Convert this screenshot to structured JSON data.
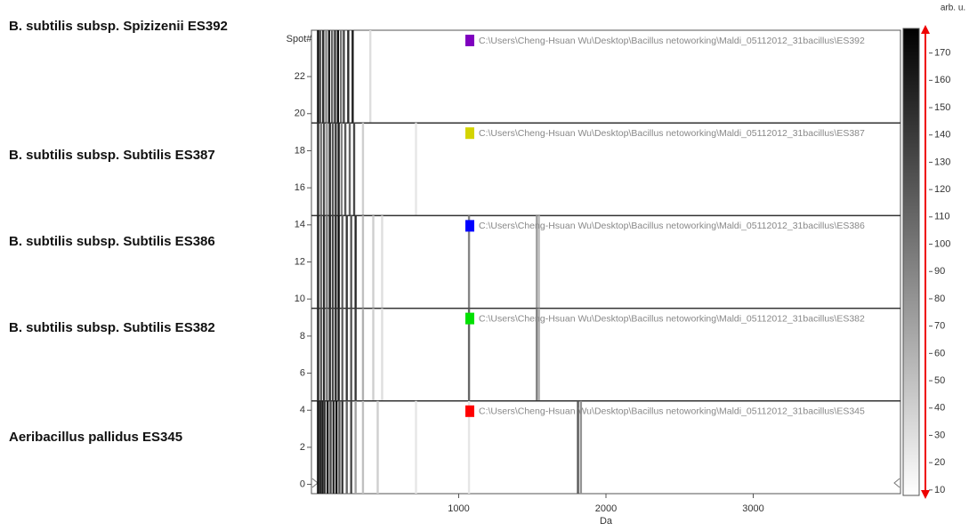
{
  "chart_data": {
    "type": "gel",
    "y_label": "Spot#",
    "x_label": "Da",
    "colorbar_label": "arb. u.",
    "xlim": [
      0,
      4000
    ],
    "xticks": [
      1000,
      2000,
      3000
    ],
    "ylim": [
      -0.5,
      24.5
    ],
    "yticks": [
      0,
      2,
      4,
      6,
      8,
      10,
      12,
      14,
      16,
      18,
      20,
      22
    ],
    "clim": [
      8,
      179
    ],
    "cticks": [
      10,
      20,
      30,
      40,
      50,
      60,
      70,
      80,
      90,
      100,
      110,
      120,
      130,
      140,
      150,
      160,
      170
    ],
    "samples": [
      {
        "name": "B. subtilis subsp. Spizizenii ES392",
        "path": "C:\\Users\\Cheng-Hsuan Wu\\Desktop\\Bacillus netoworking\\Maldi_05112012_31bacillus\\ES392",
        "color": "#7f00bf",
        "spots": [
          20,
          24
        ],
        "peaks": [
          45,
          60,
          80,
          100,
          120,
          140,
          160,
          180,
          200,
          220,
          250,
          280,
          400
        ],
        "intensities": [
          170,
          120,
          150,
          90,
          160,
          110,
          140,
          170,
          100,
          130,
          150,
          160,
          30
        ]
      },
      {
        "name": "B. subtilis subsp. Subtilis ES387",
        "path": "C:\\Users\\Cheng-Hsuan Wu\\Desktop\\Bacillus netoworking\\Maldi_05112012_31bacillus\\ES387",
        "color": "#d4d400",
        "spots": [
          15,
          19
        ],
        "peaks": [
          45,
          65,
          85,
          105,
          125,
          145,
          165,
          185,
          205,
          230,
          260,
          290,
          350,
          710
        ],
        "intensities": [
          150,
          100,
          130,
          80,
          150,
          120,
          140,
          160,
          90,
          120,
          110,
          130,
          40,
          25
        ]
      },
      {
        "name": "B. subtilis subsp. Subtilis ES386",
        "path": "C:\\Users\\Cheng-Hsuan Wu\\Desktop\\Bacillus netoworking\\Maldi_05112012_31bacillus\\ES386",
        "color": "#0000ff",
        "spots": [
          10,
          14
        ],
        "peaks": [
          45,
          65,
          85,
          105,
          125,
          145,
          165,
          185,
          210,
          240,
          270,
          300,
          350,
          420,
          480,
          1070,
          1530,
          1545
        ],
        "intensities": [
          160,
          110,
          150,
          100,
          160,
          130,
          150,
          170,
          110,
          140,
          120,
          150,
          50,
          40,
          30,
          90,
          70,
          50
        ]
      },
      {
        "name": "B. subtilis subsp. Subtilis  ES382",
        "path": "C:\\Users\\Cheng-Hsuan Wu\\Desktop\\Bacillus netoworking\\Maldi_05112012_31bacillus\\ES382",
        "color": "#00e000",
        "spots": [
          5,
          9
        ],
        "peaks": [
          45,
          65,
          85,
          105,
          125,
          145,
          165,
          185,
          210,
          240,
          270,
          300,
          350,
          420,
          480,
          1070,
          1530,
          1545
        ],
        "intensities": [
          160,
          120,
          150,
          100,
          150,
          130,
          150,
          160,
          110,
          140,
          120,
          140,
          60,
          40,
          30,
          110,
          90,
          60
        ]
      },
      {
        "name": "Aeribacillus pallidus ES345",
        "path": "C:\\Users\\Cheng-Hsuan Wu\\Desktop\\Bacillus netoworking\\Maldi_05112012_31bacillus\\ES345",
        "color": "#ff0000",
        "spots": [
          0,
          4
        ],
        "peaks": [
          45,
          60,
          75,
          90,
          110,
          130,
          150,
          170,
          190,
          210,
          240,
          270,
          300,
          350,
          450,
          710,
          1070,
          1810,
          1830
        ],
        "intensities": [
          170,
          150,
          160,
          140,
          160,
          130,
          150,
          170,
          120,
          140,
          110,
          130,
          70,
          50,
          40,
          25,
          25,
          120,
          80
        ]
      }
    ]
  }
}
